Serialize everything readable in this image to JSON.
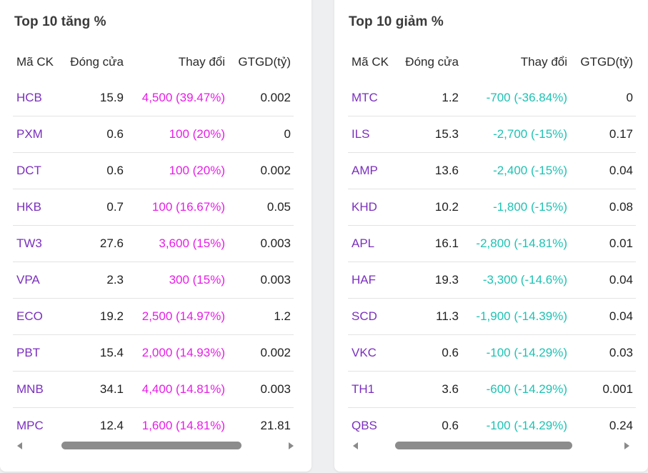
{
  "colors": {
    "up": "#e61ee6",
    "down": "#1ec2b4",
    "code": "#7b2fbe"
  },
  "gainers": {
    "title": "Top 10 tăng %",
    "headers": {
      "code": "Mã CK",
      "close": "Đóng cửa",
      "change": "Thay đổi",
      "value": "GTGD(tỷ)"
    },
    "rows": [
      {
        "code": "HCB",
        "close": "15.9",
        "change": "4,500 (39.47%)",
        "value": "0.002"
      },
      {
        "code": "PXM",
        "close": "0.6",
        "change": "100 (20%)",
        "value": "0"
      },
      {
        "code": "DCT",
        "close": "0.6",
        "change": "100 (20%)",
        "value": "0.002"
      },
      {
        "code": "HKB",
        "close": "0.7",
        "change": "100 (16.67%)",
        "value": "0.05"
      },
      {
        "code": "TW3",
        "close": "27.6",
        "change": "3,600 (15%)",
        "value": "0.003"
      },
      {
        "code": "VPA",
        "close": "2.3",
        "change": "300 (15%)",
        "value": "0.003"
      },
      {
        "code": "ECO",
        "close": "19.2",
        "change": "2,500 (14.97%)",
        "value": "1.2"
      },
      {
        "code": "PBT",
        "close": "15.4",
        "change": "2,000 (14.93%)",
        "value": "0.002"
      },
      {
        "code": "MNB",
        "close": "34.1",
        "change": "4,400 (14.81%)",
        "value": "0.003"
      },
      {
        "code": "MPC",
        "close": "12.4",
        "change": "1,600 (14.81%)",
        "value": "21.81"
      }
    ]
  },
  "losers": {
    "title": "Top 10 giảm %",
    "headers": {
      "code": "Mã CK",
      "close": "Đóng cửa",
      "change": "Thay đổi",
      "value": "GTGD(tỷ)"
    },
    "rows": [
      {
        "code": "MTC",
        "close": "1.2",
        "change": "-700 (-36.84%)",
        "value": "0"
      },
      {
        "code": "ILS",
        "close": "15.3",
        "change": "-2,700 (-15%)",
        "value": "0.17"
      },
      {
        "code": "AMP",
        "close": "13.6",
        "change": "-2,400 (-15%)",
        "value": "0.04"
      },
      {
        "code": "KHD",
        "close": "10.2",
        "change": "-1,800 (-15%)",
        "value": "0.08"
      },
      {
        "code": "APL",
        "close": "16.1",
        "change": "-2,800 (-14.81%)",
        "value": "0.01"
      },
      {
        "code": "HAF",
        "close": "19.3",
        "change": "-3,300 (-14.6%)",
        "value": "0.04"
      },
      {
        "code": "SCD",
        "close": "11.3",
        "change": "-1,900 (-14.39%)",
        "value": "0.04"
      },
      {
        "code": "VKC",
        "close": "0.6",
        "change": "-100 (-14.29%)",
        "value": "0.03"
      },
      {
        "code": "TH1",
        "close": "3.6",
        "change": "-600 (-14.29%)",
        "value": "0.001"
      },
      {
        "code": "QBS",
        "close": "0.6",
        "change": "-100 (-14.29%)",
        "value": "0.24"
      }
    ]
  }
}
